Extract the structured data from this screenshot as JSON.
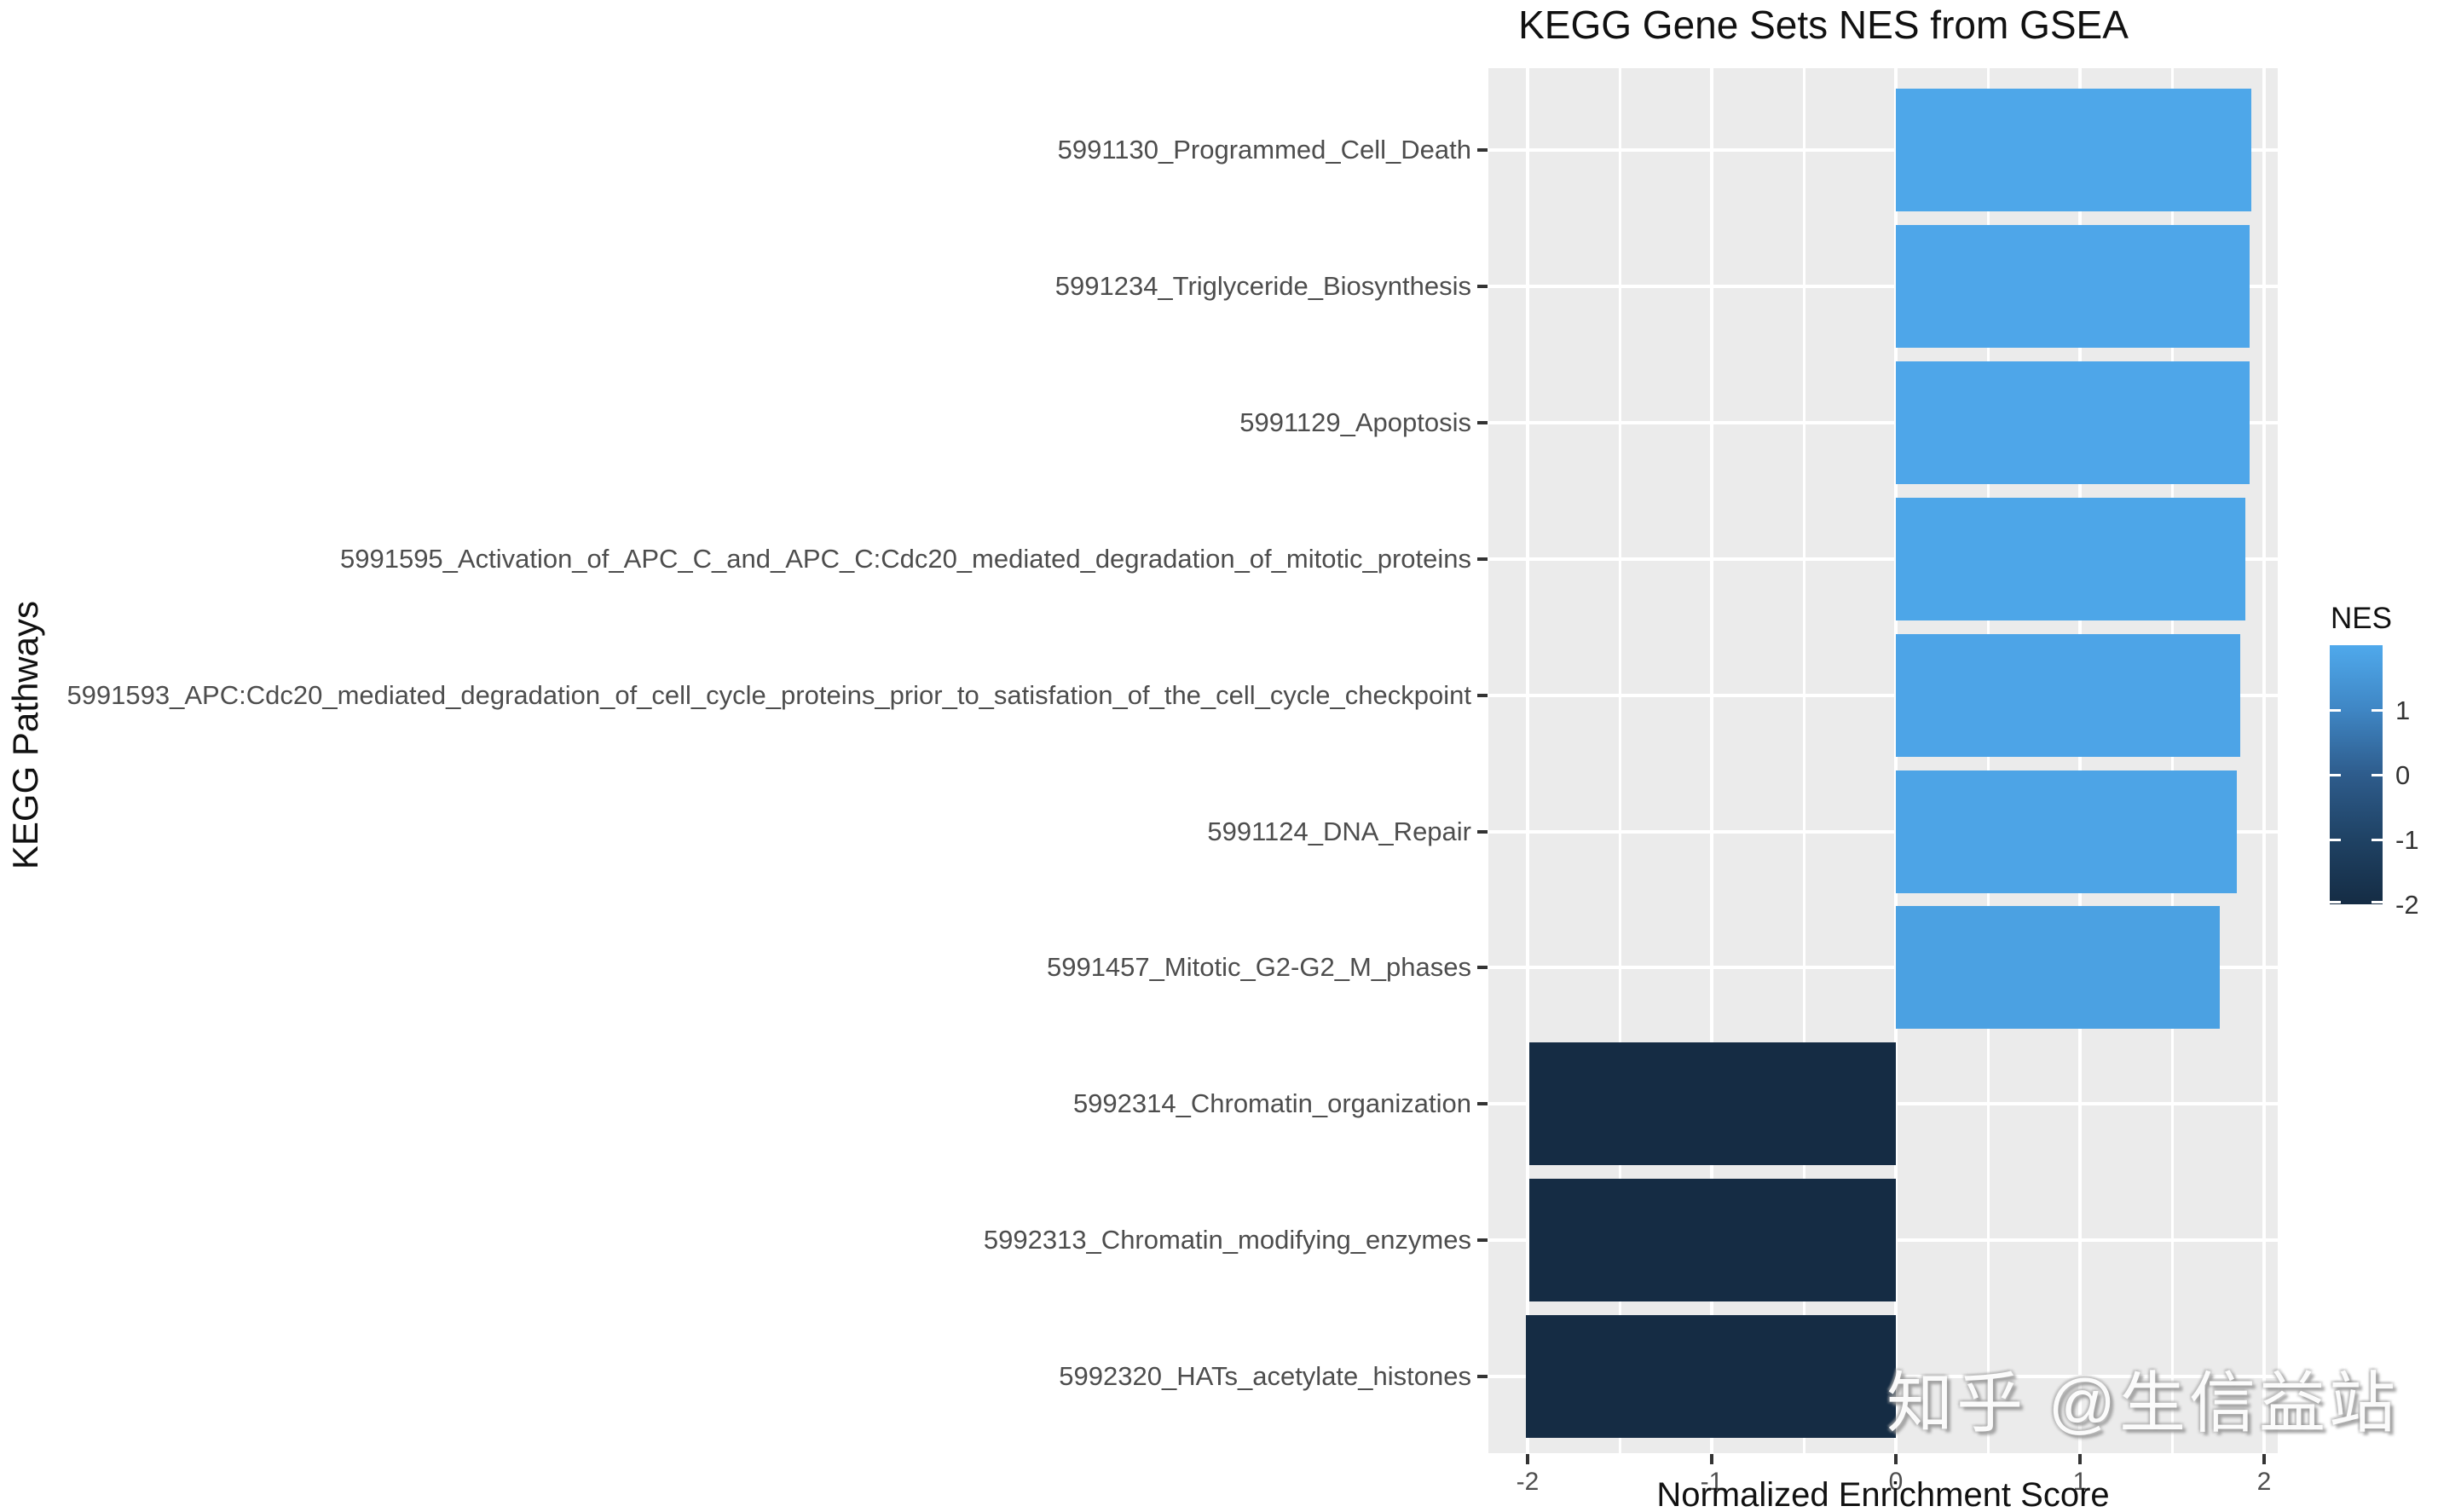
{
  "title": "KEGG Gene Sets NES from GSEA",
  "watermark": "知乎 @生信益站",
  "colors": {
    "panel_bg": "#EBEBEB",
    "grid": "#FFFFFF",
    "axis_text": "#4D4D4D",
    "tick_mark": "#333333",
    "scale_stops": [
      {
        "v": -2,
        "c": "#152C44"
      },
      {
        "v": -1,
        "c": "#1F4264"
      },
      {
        "v": 0,
        "c": "#2E5C8C"
      },
      {
        "v": 1,
        "c": "#3F86C4"
      },
      {
        "v": 2,
        "c": "#4FA9EC"
      }
    ]
  },
  "chart_data": {
    "type": "bar",
    "orientation": "horizontal",
    "title": "KEGG Gene Sets NES from GSEA",
    "xlabel": "Normalized Enrichment Score",
    "ylabel": "KEGG Pathways",
    "categories": [
      "5991130_Programmed_Cell_Death",
      "5991234_Triglyceride_Biosynthesis",
      "5991129_Apoptosis",
      "5991595_Activation_of_APC_C_and_APC_C:Cdc20_mediated_degradation_of_mitotic_proteins",
      "5991593_APC:Cdc20_mediated_degradation_of_cell_cycle_proteins_prior_to_satisfation_of_the_cell_cycle_checkpoint",
      "5991124_DNA_Repair",
      "5991457_Mitotic_G2-G2_M_phases",
      "5992314_Chromatin_organization",
      "5992313_Chromatin_modifying_enzymes",
      "5992320_HATs_acetylate_histones"
    ],
    "values": [
      1.93,
      1.92,
      1.92,
      1.9,
      1.87,
      1.85,
      1.76,
      -1.99,
      -1.99,
      -2.01
    ],
    "xlim": [
      -2.21,
      2.07
    ],
    "x_ticks": [
      -2,
      -1,
      0,
      1,
      2
    ],
    "x_minor_gridlines": [
      -1.5,
      -0.5,
      0.5,
      1.5
    ],
    "grid": true,
    "legend": {
      "title": "NES",
      "min": -2,
      "max": 2,
      "ticks": [
        1,
        0,
        -1,
        -2
      ],
      "position": "right"
    }
  }
}
